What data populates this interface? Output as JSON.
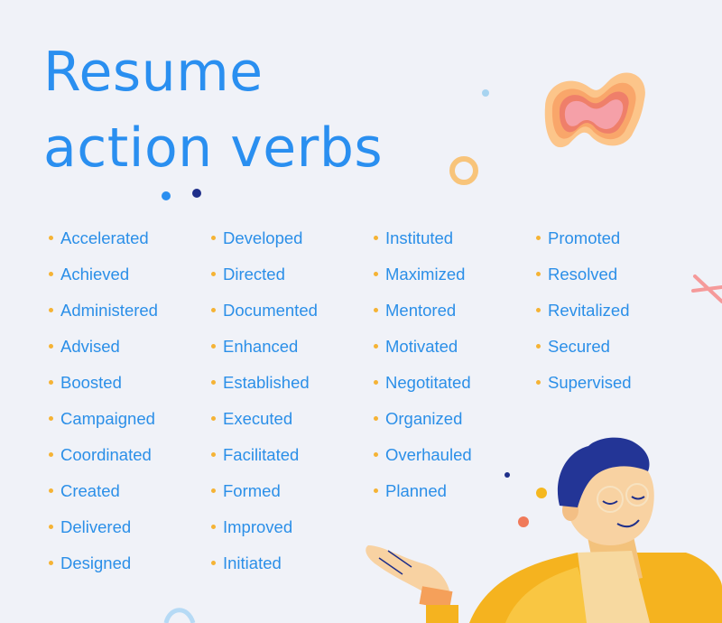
{
  "title": {
    "line1": "Resume",
    "line2": "action verbs"
  },
  "colors": {
    "title": "#2a8ff0",
    "text": "#2b8fe8",
    "bullet": "#f5b335",
    "background": "#f0f2f8"
  },
  "columns": [
    [
      "Accelerated",
      "Achieved",
      "Administered",
      "Advised",
      "Boosted",
      "Campaigned",
      "Coordinated",
      "Created",
      "Delivered",
      "Designed"
    ],
    [
      "Developed",
      "Directed",
      "Documented",
      "Enhanced",
      "Established",
      "Executed",
      "Facilitated",
      "Formed",
      "Improved",
      "Initiated"
    ],
    [
      "Instituted",
      "Maximized",
      "Mentored",
      "Motivated",
      "Negotitated",
      "Organized",
      "Overhauled",
      "Planned"
    ],
    [
      "Promoted",
      "Resolved",
      "Revitalized",
      "Secured",
      "Supervised"
    ]
  ],
  "illustration": {
    "figure": "smiling-person-illustration",
    "decorations": [
      "bowtie-blob-icon",
      "ring-icon",
      "cross-icon",
      "dot-icon"
    ]
  }
}
